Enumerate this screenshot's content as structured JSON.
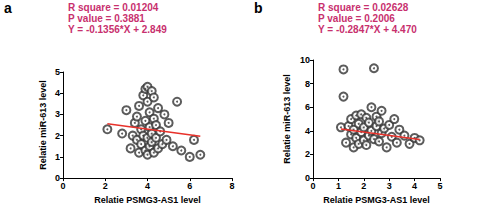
{
  "chart_data": [
    {
      "type": "scatter",
      "title": "a",
      "annotations": [
        "R square = 0.01204",
        "P value = 0.3881",
        "Y = -0.1356*X + 2.849"
      ],
      "x_label": "Relatie PSMG3-AS1 level",
      "y_label": "Relatie miR-613 level",
      "xlim": [
        0,
        8
      ],
      "xticks": [
        0,
        2,
        4,
        6,
        8
      ],
      "ylim": [
        0,
        5
      ],
      "yticks": [
        0,
        1,
        2,
        3,
        4,
        5
      ],
      "grid": false,
      "series": [
        {
          "type": "scatter",
          "marker": "circle",
          "color": "#333333",
          "x": [
            2.1,
            2.8,
            3.0,
            3.2,
            3.3,
            3.4,
            3.5,
            3.5,
            3.6,
            3.6,
            3.7,
            3.7,
            3.8,
            3.8,
            3.9,
            3.9,
            3.9,
            4.0,
            4.0,
            4.0,
            4.0,
            4.1,
            4.1,
            4.1,
            4.2,
            4.2,
            4.2,
            4.3,
            4.3,
            4.3,
            4.4,
            4.4,
            4.5,
            4.5,
            4.6,
            4.7,
            4.8,
            4.9,
            5.0,
            5.2,
            5.4,
            5.6,
            6.0,
            6.2,
            6.5
          ],
          "values": [
            2.3,
            2.1,
            3.2,
            1.4,
            2.0,
            2.6,
            1.8,
            2.9,
            3.4,
            1.2,
            2.3,
            1.6,
            3.9,
            2.0,
            4.2,
            1.3,
            2.7,
            4.3,
            3.6,
            1.9,
            1.1,
            2.4,
            3.1,
            1.5,
            4.1,
            2.1,
            1.7,
            3.8,
            2.8,
            1.2,
            2.5,
            1.9,
            3.3,
            1.4,
            2.2,
            1.6,
            3.0,
            1.8,
            2.6,
            1.5,
            3.6,
            1.3,
            1.0,
            1.8,
            1.1
          ]
        },
        {
          "type": "line",
          "color": "#e8312a",
          "x": [
            2.1,
            6.5
          ],
          "values": [
            2.564,
            1.968
          ]
        }
      ]
    },
    {
      "type": "scatter",
      "title": "b",
      "annotations": [
        "R square = 0.02628",
        "P value = 0.2006",
        "Y = -0.2847*X + 4.470"
      ],
      "x_label": "Relatie PSMG3-AS1 level",
      "y_label": "Relatie miR-613 level",
      "xlim": [
        0,
        5
      ],
      "xticks": [
        0,
        1,
        2,
        3,
        4,
        5
      ],
      "ylim": [
        0,
        10
      ],
      "yticks": [
        0,
        2,
        4,
        6,
        8,
        10
      ],
      "grid": false,
      "series": [
        {
          "type": "scatter",
          "marker": "circle",
          "color": "#333333",
          "x": [
            1.1,
            1.2,
            1.2,
            1.3,
            1.4,
            1.5,
            1.5,
            1.6,
            1.6,
            1.7,
            1.7,
            1.8,
            1.8,
            1.9,
            1.9,
            2.0,
            2.0,
            2.1,
            2.1,
            2.2,
            2.2,
            2.3,
            2.3,
            2.4,
            2.4,
            2.5,
            2.5,
            2.6,
            2.6,
            2.7,
            2.7,
            2.8,
            2.9,
            3.0,
            3.1,
            3.2,
            3.3,
            3.4,
            3.6,
            3.8,
            4.0,
            4.2
          ],
          "values": [
            4.3,
            9.2,
            6.9,
            3.0,
            4.4,
            3.7,
            5.0,
            2.6,
            4.1,
            5.3,
            3.4,
            4.6,
            2.9,
            5.4,
            3.9,
            4.3,
            3.2,
            5.1,
            2.8,
            4.7,
            3.6,
            6.0,
            4.0,
            9.3,
            3.3,
            5.2,
            4.4,
            3.1,
            4.8,
            5.7,
            3.8,
            4.2,
            2.6,
            4.5,
            3.5,
            5.0,
            3.0,
            4.1,
            3.6,
            2.9,
            3.4,
            3.2
          ]
        },
        {
          "type": "line",
          "color": "#e8312a",
          "x": [
            1.1,
            4.2
          ],
          "values": [
            4.157,
            3.274
          ]
        }
      ]
    }
  ]
}
